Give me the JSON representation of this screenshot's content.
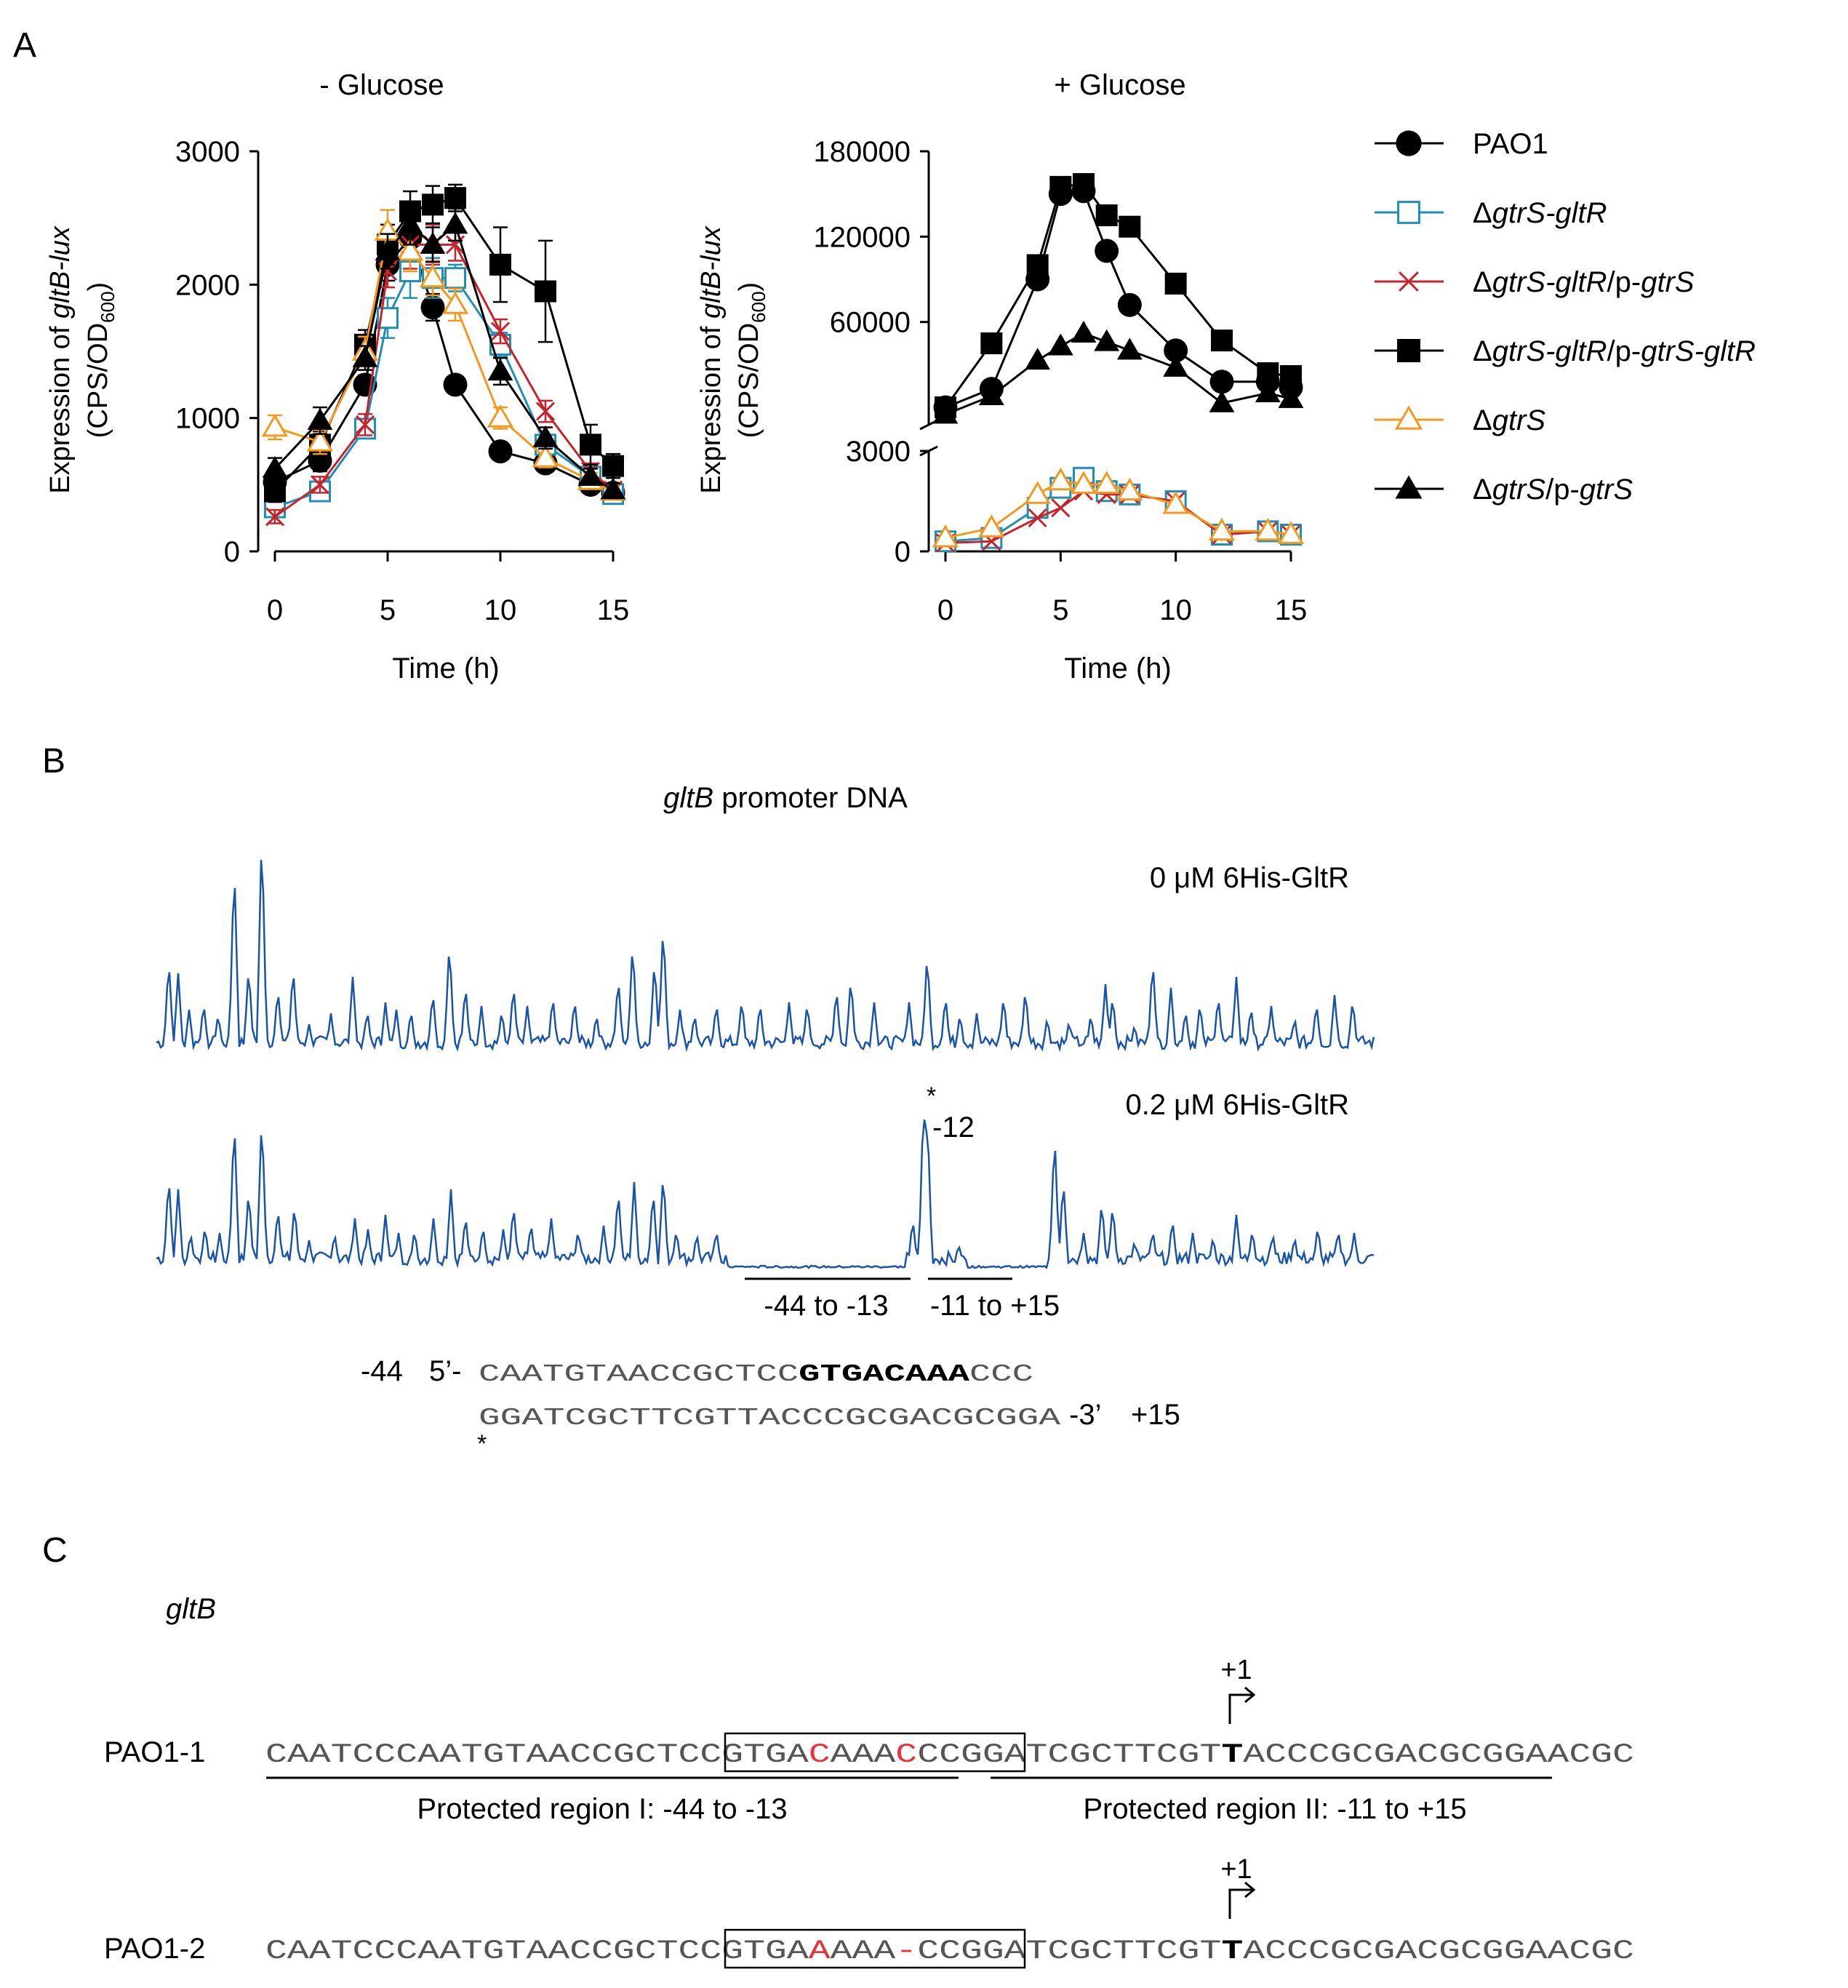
{
  "panels": {
    "a": "A",
    "b": "B",
    "c": "C"
  },
  "colors": {
    "black": "#000000",
    "teal": "#1f8fb3",
    "red": "#c8232c",
    "orange": "#f39a1e",
    "trace": "#1a54a6",
    "mismatch": "#e8323c"
  },
  "chart_data": [
    {
      "type": "line",
      "title": "- Glucose",
      "xlabel": "Time (h)",
      "ylabel": [
        "Expression of ",
        "gltB-lux",
        "(CPS/OD",
        "600",
        ")"
      ],
      "xlim": [
        0,
        15
      ],
      "ylim": [
        0,
        3000
      ],
      "xticks": [
        0,
        5,
        10,
        15
      ],
      "xtick_labels": [
        "0",
        "5",
        "10",
        "15"
      ],
      "yticks": [
        0,
        1000,
        2000,
        3000
      ],
      "ytick_labels": [
        "0",
        "1000",
        "2000",
        "3000"
      ],
      "x": [
        0,
        2,
        4,
        5,
        6,
        7,
        8,
        10,
        12,
        14,
        15
      ],
      "series": [
        {
          "name": "PAO1",
          "marker": "circle",
          "color": "black",
          "values": [
            520,
            680,
            1250,
            2150,
            2350,
            1830,
            1250,
            750,
            660,
            500,
            440
          ],
          "err": [
            60,
            80,
            70,
            120,
            150,
            100,
            60,
            50,
            60,
            40,
            40
          ]
        },
        {
          "name": "ΔgtrS-gltR",
          "marker": "square-open",
          "color": "teal",
          "values": [
            330,
            450,
            920,
            1750,
            2100,
            2050,
            2050,
            1550,
            800,
            560,
            430
          ],
          "err": [
            40,
            60,
            70,
            150,
            200,
            150,
            100,
            90,
            70,
            50,
            40
          ]
        },
        {
          "name": "ΔgtrS-gltR/p-gtrS",
          "marker": "x",
          "color": "red",
          "values": [
            260,
            500,
            950,
            2100,
            2300,
            2300,
            2300,
            1650,
            1050,
            600,
            460
          ],
          "err": [
            50,
            60,
            80,
            120,
            180,
            150,
            120,
            90,
            80,
            60,
            40
          ]
        },
        {
          "name": "ΔgtrS-gltR/p-gtrS-gltR",
          "marker": "square",
          "color": "black",
          "values": [
            450,
            800,
            1550,
            2300,
            2550,
            2600,
            2650,
            2150,
            1950,
            800,
            640
          ],
          "err": [
            80,
            100,
            110,
            150,
            150,
            140,
            100,
            280,
            380,
            150,
            90
          ]
        },
        {
          "name": "ΔgtrS",
          "marker": "triangle-open",
          "color": "orange",
          "values": [
            930,
            820,
            1500,
            2400,
            2250,
            2050,
            1850,
            1000,
            700,
            530,
            450
          ],
          "err": [
            90,
            90,
            110,
            160,
            150,
            130,
            120,
            80,
            70,
            60,
            40
          ]
        },
        {
          "name": "ΔgtrS/p-gtrS",
          "marker": "triangle",
          "color": "black",
          "values": [
            620,
            980,
            1450,
            2250,
            2450,
            2300,
            2450,
            1350,
            850,
            560,
            460
          ],
          "err": [
            80,
            100,
            90,
            130,
            150,
            130,
            120,
            100,
            80,
            60,
            50
          ]
        }
      ]
    },
    {
      "type": "line",
      "title": "+ Glucose",
      "xlabel": "Time (h)",
      "ylabel": [
        "Expression of ",
        "gltB-lux",
        "(CPS/OD",
        "600",
        ")"
      ],
      "xlim": [
        0,
        15
      ],
      "broken_axis": {
        "lower": [
          0,
          3000
        ],
        "upper_ticks": [
          60000,
          120000,
          180000
        ]
      },
      "xticks": [
        0,
        5,
        10,
        15
      ],
      "xtick_labels": [
        "0",
        "5",
        "10",
        "15"
      ],
      "yticks_lower": [
        0,
        3000
      ],
      "ytick_labels_lower": [
        "0",
        "3000"
      ],
      "yticks_upper": [
        60000,
        120000,
        180000
      ],
      "ytick_labels_upper": [
        "60000",
        "120000",
        "180000"
      ],
      "x": [
        0,
        2,
        4,
        5,
        6,
        7,
        8,
        10,
        12,
        14,
        15
      ],
      "series": [
        {
          "name": "PAO1",
          "marker": "circle",
          "color": "black",
          "values": [
            0,
            13000,
            90000,
            150000,
            152000,
            110000,
            72000,
            40000,
            18000,
            18000,
            14000
          ]
        },
        {
          "name": "ΔgtrS-gltR",
          "marker": "square-open",
          "color": "teal",
          "values": [
            300,
            400,
            1300,
            1900,
            2200,
            1800,
            1700,
            1500,
            500,
            600,
            500
          ]
        },
        {
          "name": "ΔgtrS-gltR/p-gtrS",
          "marker": "x",
          "color": "red",
          "values": [
            250,
            300,
            1000,
            1300,
            1800,
            1700,
            1700,
            1500,
            500,
            600,
            500
          ]
        },
        {
          "name": "ΔgtrS-gltR/p-gtrS-gltR",
          "marker": "square",
          "color": "black",
          "values": [
            0,
            45000,
            100000,
            155000,
            157000,
            135000,
            127000,
            87000,
            47000,
            24000,
            22000
          ]
        },
        {
          "name": "ΔgtrS",
          "marker": "triangle-open",
          "color": "orange",
          "values": [
            400,
            700,
            1700,
            2100,
            2000,
            2000,
            1800,
            1400,
            600,
            600,
            500
          ]
        },
        {
          "name": "ΔgtrS/p-gtrS",
          "marker": "triangle",
          "color": "black",
          "values": [
            -5000,
            8000,
            33000,
            43000,
            52000,
            46000,
            40000,
            28000,
            3000,
            10000,
            6000
          ]
        }
      ]
    }
  ],
  "legend": [
    {
      "marker": "circle",
      "color": "black",
      "label": "PAO1"
    },
    {
      "marker": "square-open",
      "color": "teal",
      "label": "ΔgtrS-gltR"
    },
    {
      "marker": "x",
      "color": "red",
      "label": "ΔgtrS-gltR/p-gtrS"
    },
    {
      "marker": "square",
      "color": "black",
      "label": "ΔgtrS-gltR/p-gtrS-gltR"
    },
    {
      "marker": "triangle-open",
      "color": "orange",
      "label": "ΔgtrS"
    },
    {
      "marker": "triangle",
      "color": "black",
      "label": "ΔgtrS/p-gtrS"
    }
  ],
  "panel_b": {
    "title_italic": "gltB",
    "title_rest": " promoter DNA",
    "trace1_label": "0 μM 6His-GltR",
    "trace2_label": "0.2 μM 6His-GltR",
    "peak_star": "*",
    "peak_label": "-12",
    "region1": "-44 to -13",
    "region2": "-11 to +15",
    "seq_left": "-44",
    "seq_five": "5’-",
    "seq1_plain": "CAATGTAACCGCTCC",
    "seq1_bold": "GTGACAAA",
    "seq1_end": "CCC",
    "seq2": "GGATCGCTTCGTTACCCGCGACGCGGA",
    "seq_three": "-3’",
    "seq_right": "+15",
    "star": "*"
  },
  "panel_c": {
    "gene": "gltB",
    "plus_one": "+1",
    "row1_label": "PAO1-1",
    "row1_pre": "CAATCCCAATGTAACCGCTCC",
    "row1_box": [
      "GTGA",
      "C",
      "AAA",
      "C",
      "CCGGA"
    ],
    "row1_mid": "TCGCTTCGT",
    "row1_tss": "T",
    "row1_post": "ACCCGCGACGCGGAACGC",
    "region1_label": "Protected region I: -44 to -13",
    "region2_label": "Protected region II: -11 to +15",
    "row2_label": "PAO1-2",
    "row2_pre": "CAATCCCAATGTAACCGCTCC",
    "row2_box": [
      "GTGA",
      "A",
      "AAA",
      "-",
      "CCGGA"
    ],
    "row2_mid": "TCGCTTCGT",
    "row2_tss": "T",
    "row2_post": "ACCCGCGACGCGGAACGC"
  }
}
